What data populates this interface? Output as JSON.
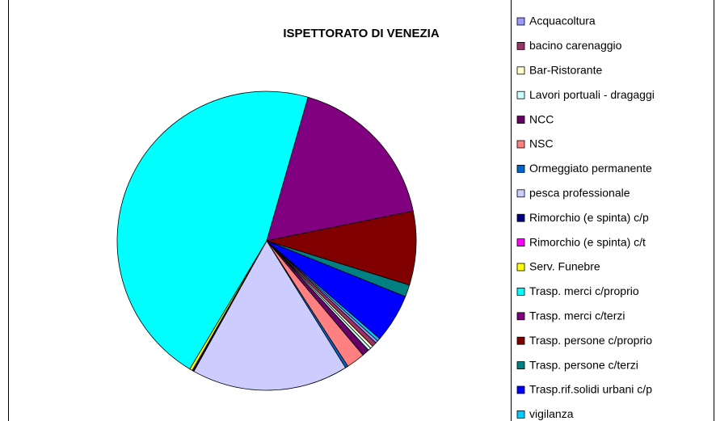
{
  "chart_data": {
    "type": "pie",
    "title": "ISPETTORATO DI VENEZIA",
    "categories": [
      "Acquacoltura",
      "bacino carenaggio",
      "Bar-Ristorante",
      "Lavori portuali - dragaggi",
      "NCC",
      "NSC",
      "Ormeggiato permanente",
      "pesca professionale",
      "Rimorchio (e spinta) c/p",
      "Rimorchio (e spinta) c/t",
      "Serv. Funebre",
      "Trasp. merci c/proprio",
      "Trasp. merci c/terzi",
      "Trasp. persone c/proprio",
      "Trasp. persone c/terzi",
      "Trasp.rif.solidi urbani c/p",
      "vigilanza"
    ],
    "values": [
      0.3,
      0.5,
      0.3,
      0.3,
      0.8,
      2.0,
      0.3,
      17.0,
      0.1,
      0.1,
      0.3,
      46.0,
      17.4,
      8.0,
      1.3,
      5.3,
      0.3
    ],
    "colors": [
      "#9999ff",
      "#993366",
      "#ffffcc",
      "#ccffff",
      "#660066",
      "#ff8080",
      "#0066cc",
      "#ccccff",
      "#000080",
      "#ff00ff",
      "#ffff00",
      "#00ffff",
      "#800080",
      "#800000",
      "#008080",
      "#0000ff",
      "#00ccff"
    ],
    "legend": "right"
  }
}
